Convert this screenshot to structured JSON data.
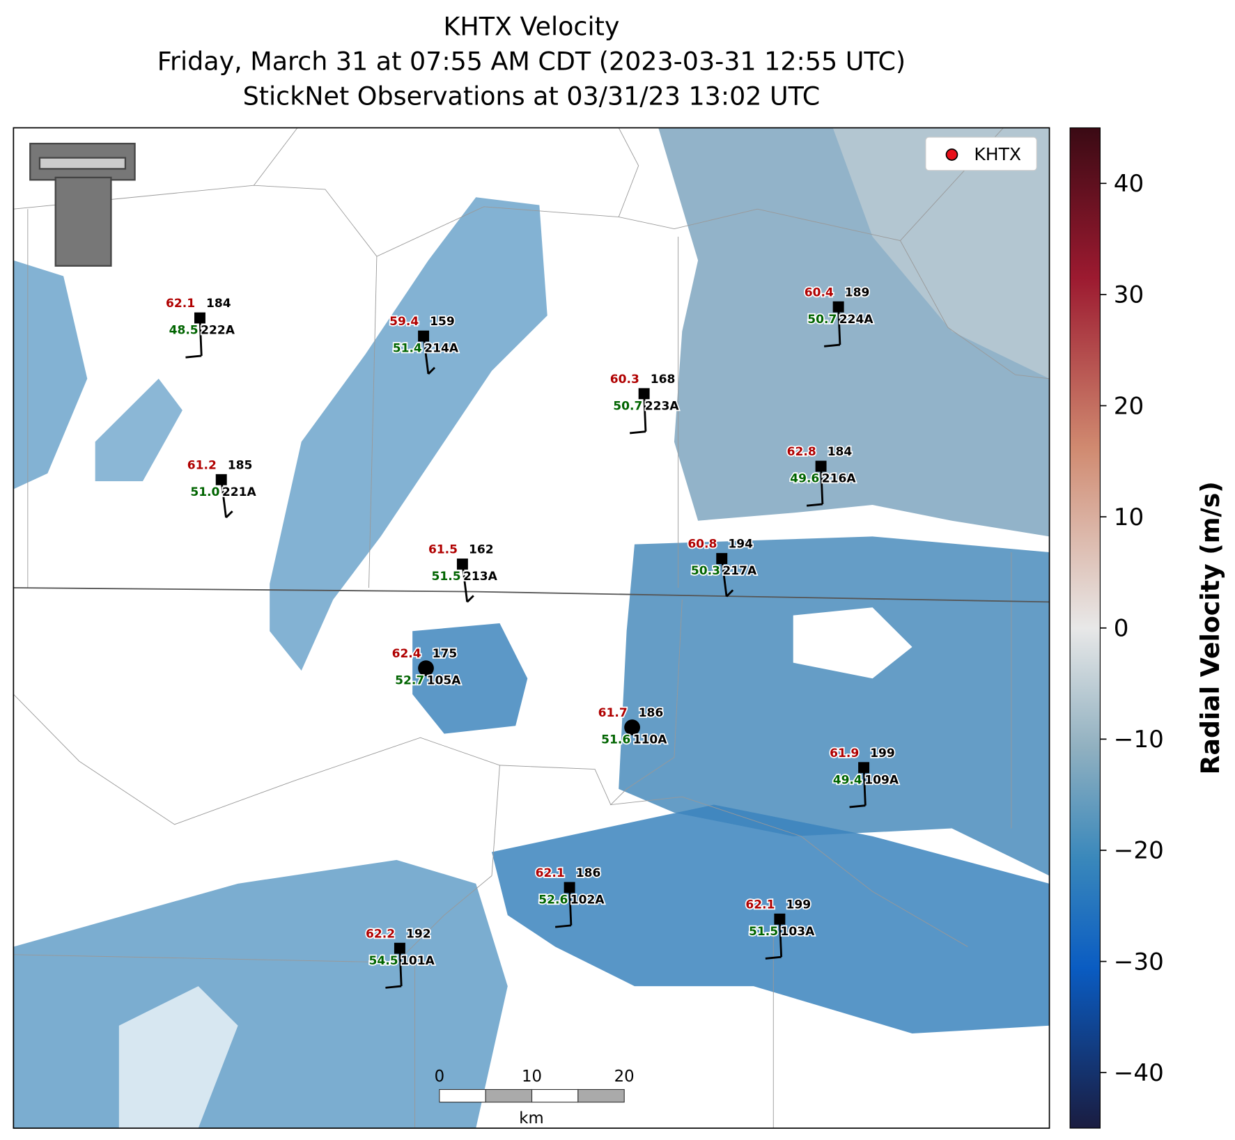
{
  "title": [
    "KHTX Velocity",
    "Friday, March 31 at 07:55 AM CDT (2023-03-31 12:55 UTC)",
    "StickNet Observations at 03/31/23 13:02 UTC"
  ],
  "legend": {
    "label": "KHTX",
    "color": "#e8101a"
  },
  "colorbar": {
    "label": "Radial Velocity (m/s)",
    "lim": [
      -45,
      45
    ],
    "ticks": [
      {
        "value": -40,
        "label": "−40"
      },
      {
        "value": -30,
        "label": "−30"
      },
      {
        "value": -20,
        "label": "−20"
      },
      {
        "value": -10,
        "label": "−10"
      },
      0,
      10,
      20,
      30,
      40
    ]
  },
  "scalebar": {
    "unit": "km",
    "ticks": [
      0,
      10,
      20
    ]
  },
  "stations": [
    {
      "temp": "62.1",
      "dew": "48.5",
      "dir": "184",
      "id": "222A"
    },
    {
      "temp": "59.4",
      "dew": "51.4",
      "dir": "159",
      "id": "214A"
    },
    {
      "temp": "60.3",
      "dew": "50.7",
      "dir": "168",
      "id": "223A"
    },
    {
      "temp": "60.4",
      "dew": "50.7",
      "dir": "189",
      "id": "224A"
    },
    {
      "temp": "61.2",
      "dew": "51.0",
      "dir": "185",
      "id": "221A"
    },
    {
      "temp": "62.8",
      "dew": "49.6",
      "dir": "184",
      "id": "216A"
    },
    {
      "temp": "61.5",
      "dew": "51.5",
      "dir": "162",
      "id": "213A"
    },
    {
      "temp": "60.8",
      "dew": "50.3",
      "dir": "194",
      "id": "217A"
    },
    {
      "temp": "62.4",
      "dew": "52.7",
      "dir": "175",
      "id": "105A"
    },
    {
      "temp": "61.7",
      "dew": "51.6",
      "dir": "186",
      "id": "110A"
    },
    {
      "temp": "61.9",
      "dew": "49.4",
      "dir": "199",
      "id": "109A"
    },
    {
      "temp": "62.1",
      "dew": "52.6",
      "dir": "186",
      "id": "102A"
    },
    {
      "temp": "62.1",
      "dew": "51.5",
      "dir": "199",
      "id": "103A"
    },
    {
      "temp": "62.2",
      "dew": "54.5",
      "dir": "192",
      "id": "101A"
    }
  ]
}
